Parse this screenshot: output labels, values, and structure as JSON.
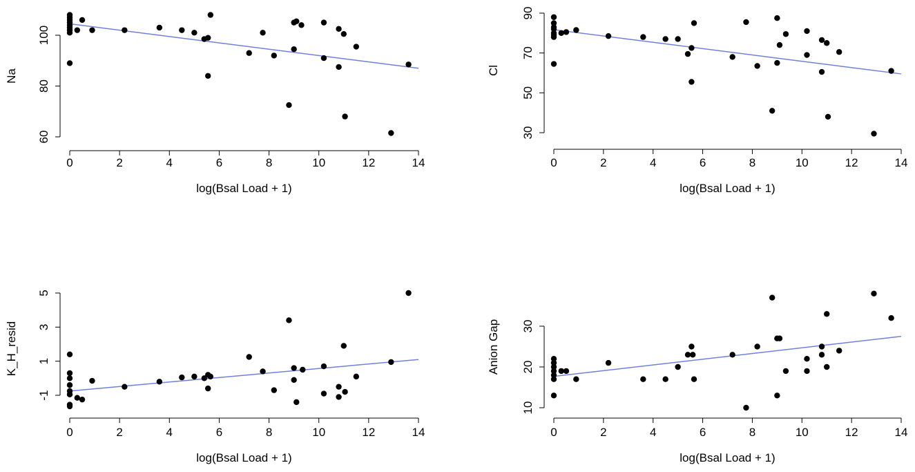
{
  "chart_data": [
    {
      "id": "na",
      "type": "scatter",
      "title": "",
      "xlabel": "log(Bsal Load + 1)",
      "ylabel": "Na",
      "xlim": [
        0,
        14
      ],
      "ylim": [
        60,
        110
      ],
      "xticks": [
        0,
        2,
        4,
        6,
        8,
        10,
        12,
        14
      ],
      "yticks": [
        60,
        80,
        100
      ],
      "trend": {
        "x": [
          0,
          14
        ],
        "y": [
          104.5,
          87.0
        ],
        "color": "#6f7fe0"
      },
      "points": [
        {
          "x": 0,
          "y": 108
        },
        {
          "x": 0,
          "y": 107
        },
        {
          "x": 0,
          "y": 106
        },
        {
          "x": 0,
          "y": 105
        },
        {
          "x": 0,
          "y": 104
        },
        {
          "x": 0,
          "y": 103
        },
        {
          "x": 0,
          "y": 102
        },
        {
          "x": 0,
          "y": 101
        },
        {
          "x": 0,
          "y": 89
        },
        {
          "x": 0.3,
          "y": 102
        },
        {
          "x": 0.5,
          "y": 106
        },
        {
          "x": 0.9,
          "y": 102
        },
        {
          "x": 2.2,
          "y": 102
        },
        {
          "x": 3.6,
          "y": 103
        },
        {
          "x": 4.5,
          "y": 102
        },
        {
          "x": 5.0,
          "y": 101
        },
        {
          "x": 5.4,
          "y": 98.5
        },
        {
          "x": 5.55,
          "y": 99
        },
        {
          "x": 5.55,
          "y": 84
        },
        {
          "x": 5.65,
          "y": 108
        },
        {
          "x": 7.2,
          "y": 93
        },
        {
          "x": 7.75,
          "y": 101
        },
        {
          "x": 8.2,
          "y": 92
        },
        {
          "x": 8.8,
          "y": 72.5
        },
        {
          "x": 9.0,
          "y": 105
        },
        {
          "x": 9.0,
          "y": 94.5
        },
        {
          "x": 9.1,
          "y": 105.5
        },
        {
          "x": 9.3,
          "y": 104
        },
        {
          "x": 10.2,
          "y": 105
        },
        {
          "x": 10.2,
          "y": 91
        },
        {
          "x": 10.8,
          "y": 102.5
        },
        {
          "x": 10.8,
          "y": 87.5
        },
        {
          "x": 11.0,
          "y": 100.5
        },
        {
          "x": 11.05,
          "y": 68
        },
        {
          "x": 11.5,
          "y": 95.5
        },
        {
          "x": 12.9,
          "y": 61.5
        },
        {
          "x": 13.6,
          "y": 88.5
        }
      ]
    },
    {
      "id": "cl",
      "type": "scatter",
      "title": "",
      "xlabel": "log(Bsal Load + 1)",
      "ylabel": "Cl",
      "xlim": [
        0,
        14
      ],
      "ylim": [
        30,
        92
      ],
      "xticks": [
        0,
        2,
        4,
        6,
        8,
        10,
        12,
        14
      ],
      "yticks": [
        30,
        50,
        70,
        90
      ],
      "trend": {
        "x": [
          0,
          14
        ],
        "y": [
          81.7,
          59.5
        ],
        "color": "#6f7fe0"
      },
      "points": [
        {
          "x": 0,
          "y": 88
        },
        {
          "x": 0,
          "y": 85
        },
        {
          "x": 0,
          "y": 83
        },
        {
          "x": 0,
          "y": 82
        },
        {
          "x": 0,
          "y": 80
        },
        {
          "x": 0,
          "y": 79
        },
        {
          "x": 0,
          "y": 78
        },
        {
          "x": 0,
          "y": 64.5
        },
        {
          "x": 0.3,
          "y": 80
        },
        {
          "x": 0.5,
          "y": 80.5
        },
        {
          "x": 0.9,
          "y": 81.5
        },
        {
          "x": 2.2,
          "y": 78.5
        },
        {
          "x": 3.6,
          "y": 78
        },
        {
          "x": 4.5,
          "y": 77
        },
        {
          "x": 5.0,
          "y": 77
        },
        {
          "x": 5.4,
          "y": 69.5
        },
        {
          "x": 5.55,
          "y": 72.5
        },
        {
          "x": 5.55,
          "y": 55.5
        },
        {
          "x": 5.65,
          "y": 85
        },
        {
          "x": 7.2,
          "y": 68
        },
        {
          "x": 7.75,
          "y": 85.5
        },
        {
          "x": 8.2,
          "y": 63.5
        },
        {
          "x": 8.8,
          "y": 41
        },
        {
          "x": 9.0,
          "y": 87.5
        },
        {
          "x": 9.0,
          "y": 65
        },
        {
          "x": 9.1,
          "y": 74
        },
        {
          "x": 9.35,
          "y": 79.5
        },
        {
          "x": 10.2,
          "y": 81
        },
        {
          "x": 10.2,
          "y": 69
        },
        {
          "x": 10.8,
          "y": 76.5
        },
        {
          "x": 10.8,
          "y": 60.5
        },
        {
          "x": 11.0,
          "y": 75
        },
        {
          "x": 11.05,
          "y": 38
        },
        {
          "x": 11.5,
          "y": 70.5
        },
        {
          "x": 12.9,
          "y": 29.5
        },
        {
          "x": 13.6,
          "y": 61
        }
      ]
    },
    {
      "id": "kh",
      "type": "scatter",
      "title": "",
      "xlabel": "log(Bsal Load + 1)",
      "ylabel": "K_H_resid",
      "xlim": [
        0,
        14
      ],
      "ylim": [
        -1.8,
        5.2
      ],
      "xticks": [
        0,
        2,
        4,
        6,
        8,
        10,
        12,
        14
      ],
      "yticks": [
        -1,
        1,
        3,
        5
      ],
      "ytick_labels": [
        "-1",
        "1",
        "3",
        "5"
      ],
      "trend": {
        "x": [
          0,
          14
        ],
        "y": [
          -0.75,
          1.1
        ],
        "color": "#6f7fe0"
      },
      "points": [
        {
          "x": 0,
          "y": 1.4
        },
        {
          "x": 0,
          "y": 0.3
        },
        {
          "x": 0,
          "y": 0.0
        },
        {
          "x": 0,
          "y": -0.4
        },
        {
          "x": 0,
          "y": -0.75
        },
        {
          "x": 0,
          "y": -0.95
        },
        {
          "x": 0,
          "y": -1.55
        },
        {
          "x": 0,
          "y": -1.65
        },
        {
          "x": 0.3,
          "y": -1.15
        },
        {
          "x": 0.5,
          "y": -1.25
        },
        {
          "x": 0.9,
          "y": -0.15
        },
        {
          "x": 2.2,
          "y": -0.5
        },
        {
          "x": 3.6,
          "y": -0.2
        },
        {
          "x": 4.5,
          "y": 0.05
        },
        {
          "x": 5.0,
          "y": 0.1
        },
        {
          "x": 5.4,
          "y": 0.0
        },
        {
          "x": 5.55,
          "y": 0.2
        },
        {
          "x": 5.55,
          "y": -0.6
        },
        {
          "x": 5.65,
          "y": 0.1
        },
        {
          "x": 7.2,
          "y": 1.25
        },
        {
          "x": 7.75,
          "y": 0.4
        },
        {
          "x": 8.2,
          "y": -0.7
        },
        {
          "x": 8.8,
          "y": 3.4
        },
        {
          "x": 9.0,
          "y": 0.6
        },
        {
          "x": 9.0,
          "y": -0.1
        },
        {
          "x": 9.1,
          "y": -1.4
        },
        {
          "x": 9.35,
          "y": 0.5
        },
        {
          "x": 10.2,
          "y": 0.7
        },
        {
          "x": 10.2,
          "y": -0.9
        },
        {
          "x": 10.8,
          "y": -0.5
        },
        {
          "x": 10.8,
          "y": -1.1
        },
        {
          "x": 11.0,
          "y": 1.9
        },
        {
          "x": 11.05,
          "y": -0.8
        },
        {
          "x": 11.5,
          "y": 0.1
        },
        {
          "x": 12.9,
          "y": 0.95
        },
        {
          "x": 13.6,
          "y": 5.0
        }
      ]
    },
    {
      "id": "anion",
      "type": "scatter",
      "title": "",
      "xlabel": "log(Bsal Load + 1)",
      "ylabel": "Anion Gap",
      "xlim": [
        0,
        14
      ],
      "ylim": [
        10,
        40
      ],
      "xticks": [
        0,
        2,
        4,
        6,
        8,
        10,
        12,
        14
      ],
      "yticks": [
        10,
        20,
        30
      ],
      "trend": {
        "x": [
          0,
          14
        ],
        "y": [
          17.7,
          27.5
        ],
        "color": "#6f7fe0"
      },
      "points": [
        {
          "x": 0,
          "y": 22
        },
        {
          "x": 0,
          "y": 21
        },
        {
          "x": 0,
          "y": 20
        },
        {
          "x": 0,
          "y": 19
        },
        {
          "x": 0,
          "y": 18
        },
        {
          "x": 0,
          "y": 17
        },
        {
          "x": 0,
          "y": 13
        },
        {
          "x": 0.3,
          "y": 19
        },
        {
          "x": 0.5,
          "y": 19
        },
        {
          "x": 0.9,
          "y": 17
        },
        {
          "x": 2.2,
          "y": 21
        },
        {
          "x": 3.6,
          "y": 17
        },
        {
          "x": 4.5,
          "y": 17
        },
        {
          "x": 5.0,
          "y": 20
        },
        {
          "x": 5.4,
          "y": 23
        },
        {
          "x": 5.55,
          "y": 25
        },
        {
          "x": 5.6,
          "y": 23
        },
        {
          "x": 5.65,
          "y": 17
        },
        {
          "x": 7.2,
          "y": 23
        },
        {
          "x": 7.75,
          "y": 10
        },
        {
          "x": 8.2,
          "y": 25
        },
        {
          "x": 8.8,
          "y": 37
        },
        {
          "x": 9.0,
          "y": 27
        },
        {
          "x": 9.0,
          "y": 13
        },
        {
          "x": 9.1,
          "y": 27
        },
        {
          "x": 9.35,
          "y": 19
        },
        {
          "x": 10.2,
          "y": 22
        },
        {
          "x": 10.2,
          "y": 19
        },
        {
          "x": 10.8,
          "y": 25
        },
        {
          "x": 10.8,
          "y": 23
        },
        {
          "x": 11.0,
          "y": 33
        },
        {
          "x": 11.0,
          "y": 20
        },
        {
          "x": 11.5,
          "y": 24
        },
        {
          "x": 12.9,
          "y": 38
        },
        {
          "x": 13.6,
          "y": 32
        }
      ]
    }
  ]
}
